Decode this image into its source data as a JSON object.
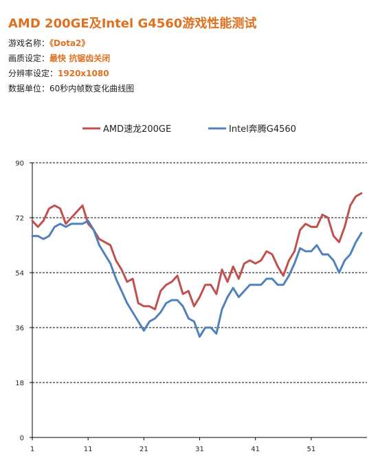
{
  "header": {
    "title": "AMD 200GE及Intel G4560游戏性能测试",
    "rows": [
      {
        "label": "游戏名称：",
        "value": "《Dota2》",
        "emph": true
      },
      {
        "label": "画质设定：",
        "value": "最快 抗锯齿关闭",
        "emph": true
      },
      {
        "label": "分辨率设定：",
        "value": "1920x1080",
        "emph": true
      },
      {
        "label": "数据单位：",
        "value": "60秒内帧数变化曲线图",
        "emph": false
      }
    ]
  },
  "chart_data": {
    "type": "line",
    "ylim": [
      0,
      90
    ],
    "y_ticks": [
      0,
      18,
      36,
      54,
      72,
      90
    ],
    "x_ticks": [
      1,
      11,
      21,
      31,
      41,
      51
    ],
    "xlim": [
      1,
      61
    ],
    "grid": true,
    "legend_position": "top",
    "series": [
      {
        "name": "AMD速龙200GE",
        "color": "#c0504d",
        "values": [
          71,
          69,
          71,
          75,
          76,
          75,
          70,
          72,
          74,
          76,
          70,
          68,
          65,
          64,
          63,
          58,
          55,
          51,
          52,
          44,
          43,
          43,
          42,
          48,
          50,
          51,
          53,
          47,
          48,
          43,
          46,
          50,
          50,
          47,
          55,
          51,
          56,
          52,
          57,
          58,
          57,
          58,
          61,
          60,
          56,
          53,
          58,
          61,
          68,
          70,
          69,
          69,
          73,
          72,
          66,
          64,
          69,
          76,
          79,
          80
        ]
      },
      {
        "name": "Intel奔腾G4560",
        "color": "#4f81bd",
        "values": [
          66,
          66,
          65,
          66,
          69,
          70,
          69,
          70,
          70,
          70,
          71,
          68,
          63,
          60,
          57,
          52,
          48,
          44,
          41,
          38,
          35,
          38,
          39,
          41,
          44,
          45,
          45,
          43,
          39,
          38,
          33,
          36,
          36,
          34,
          42,
          46,
          49,
          46,
          48,
          50,
          50,
          50,
          52,
          52,
          50,
          50,
          53,
          57,
          62,
          61,
          61,
          63,
          60,
          60,
          58,
          54,
          58,
          60,
          64,
          67
        ]
      }
    ]
  }
}
